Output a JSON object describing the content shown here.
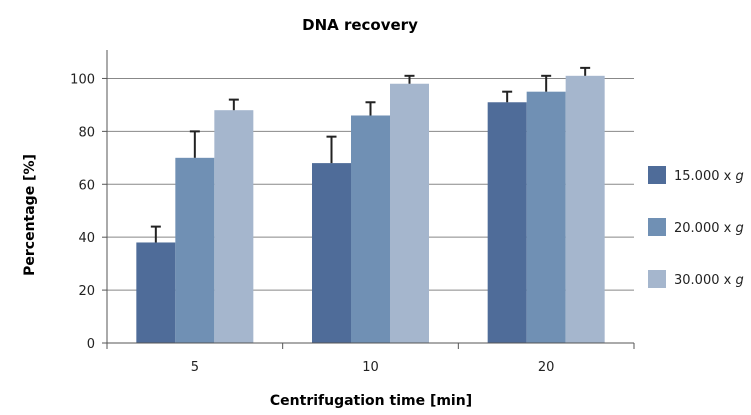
{
  "chart_data": {
    "type": "bar",
    "title": "DNA recovery",
    "xlabel": "Centrifugation time [min]",
    "ylabel": "Percentage [%]",
    "categories": [
      "5",
      "10",
      "20"
    ],
    "ylim": [
      0,
      110
    ],
    "yticks": [
      0,
      20,
      40,
      60,
      80,
      100
    ],
    "grid": true,
    "legend_position": "right",
    "series": [
      {
        "name": "15.000 x",
        "name_italic_suffix": "g",
        "color": "#4f6c99",
        "values": [
          38,
          68,
          91
        ],
        "errors": [
          6,
          10,
          4
        ]
      },
      {
        "name": "20.000 x",
        "name_italic_suffix": "g",
        "color": "#7090b4",
        "values": [
          70,
          86,
          95
        ],
        "errors": [
          10,
          5,
          6
        ]
      },
      {
        "name": "30.000 x",
        "name_italic_suffix": "g",
        "color": "#a5b6cd",
        "values": [
          88,
          98,
          101
        ],
        "errors": [
          4,
          3,
          3
        ]
      }
    ]
  }
}
